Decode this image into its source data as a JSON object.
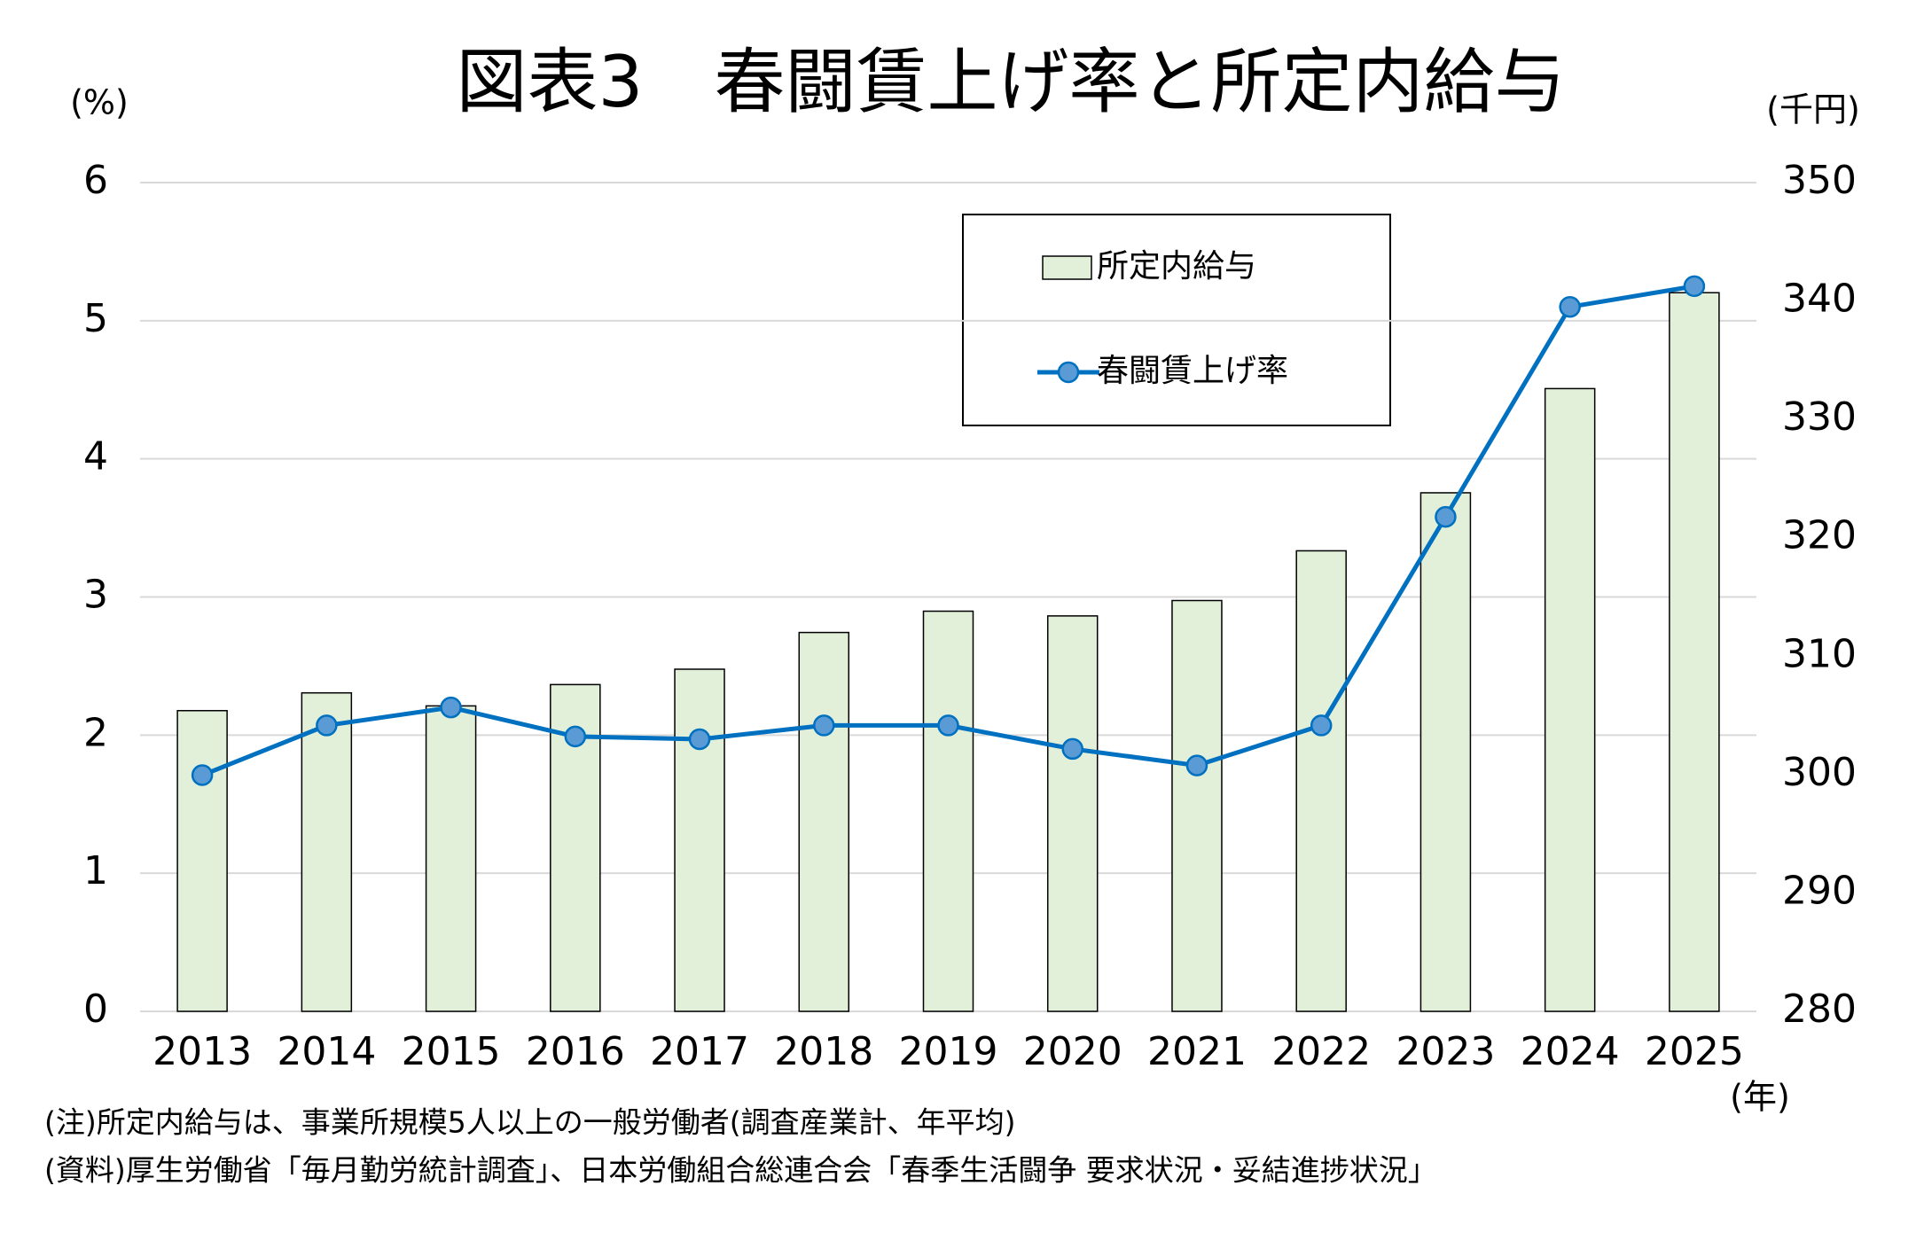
{
  "chart_data": {
    "type": "bar-line",
    "title": "図表3　春闘賃上げ率と所定内給与",
    "y_label": "(%)",
    "y2_label": "(千円)",
    "x_label": "(年)",
    "categories": [
      "2013",
      "2014",
      "2015",
      "2016",
      "2017",
      "2018",
      "2019",
      "2020",
      "2021",
      "2022",
      "2023",
      "2024",
      "2025"
    ],
    "series": [
      {
        "name": "所定内給与",
        "type": "bar",
        "axis": "y2",
        "color": "#e2efd9",
        "edge": "#000000",
        "values": [
          305.4,
          306.9,
          305.8,
          307.6,
          308.9,
          312.0,
          313.8,
          313.4,
          314.7,
          318.9,
          323.8,
          332.6,
          340.7
        ]
      },
      {
        "name": "春闘賃上げ率",
        "type": "line",
        "axis": "y",
        "color": "#0070c0",
        "marker_color": "#5b9bd5",
        "values": [
          1.71,
          2.07,
          2.2,
          1.99,
          1.97,
          2.07,
          2.07,
          1.9,
          1.78,
          2.07,
          3.58,
          5.1,
          5.25
        ]
      }
    ],
    "ylim": [
      0,
      6
    ],
    "yticks": [
      0,
      1,
      2,
      3,
      4,
      5,
      6
    ],
    "y2lim": [
      280,
      350
    ],
    "y2ticks": [
      280,
      290,
      300,
      310,
      320,
      330,
      340,
      350
    ],
    "grid": true,
    "notes": [
      "(注)所定内給与は、事業所規模5人以上の一般労働者(調査産業計、年平均)",
      "(資料)厚生労働省「毎月勤労統計調査」、日本労働組合総連合会「春季生活闘争 要求状況・妥結進捗状況」"
    ]
  }
}
